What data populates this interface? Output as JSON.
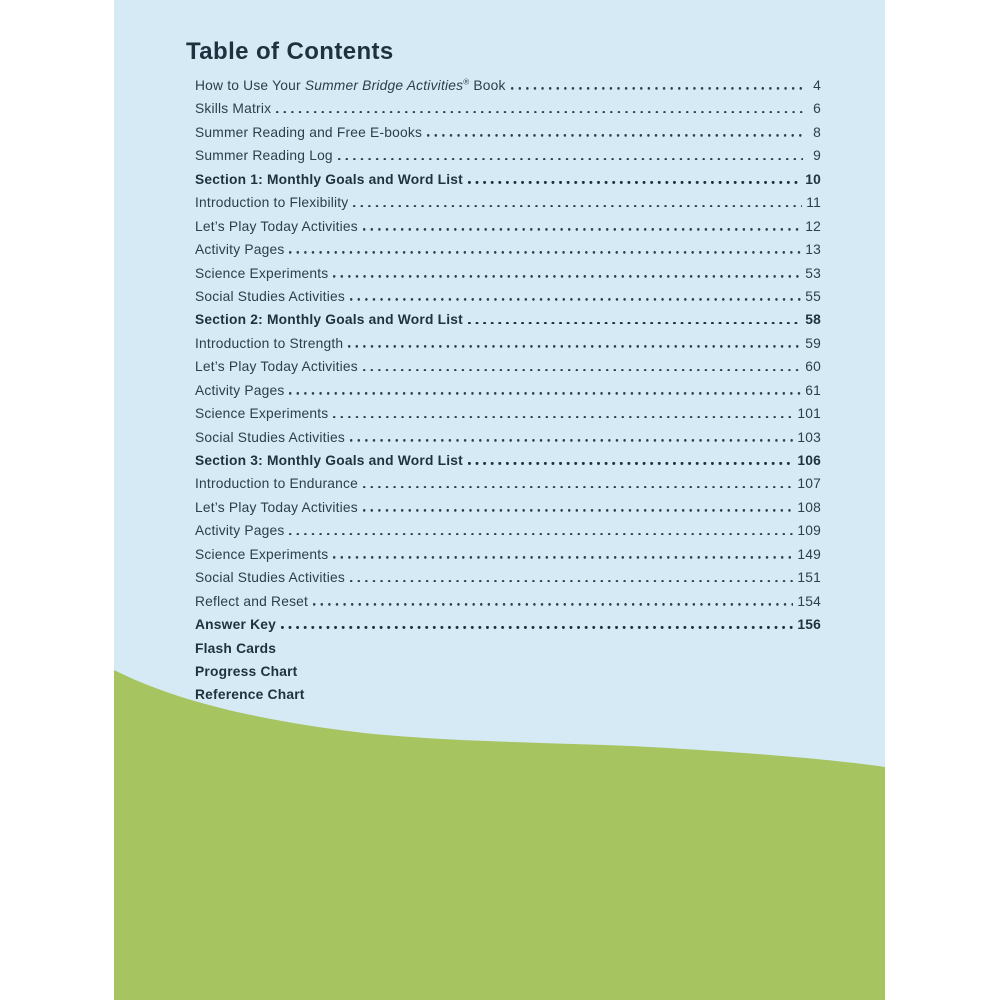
{
  "page": {
    "title": "Table of Contents"
  },
  "colors": {
    "page_background": "#d6eaf5",
    "wave_green": "#a6c45f",
    "text": "#2b3e4a",
    "bold_text": "#1d323e"
  },
  "toc": {
    "entries": [
      {
        "pre": "How to Use Your ",
        "italic": "Summer Bridge Activities",
        "sup": "®",
        "post": " Book",
        "page": "4",
        "bold": false
      },
      {
        "label": "Skills Matrix",
        "page": "6",
        "bold": false
      },
      {
        "label": "Summer Reading and Free E-books",
        "page": "8",
        "bold": false
      },
      {
        "label": "Summer Reading Log",
        "page": "9",
        "bold": false
      },
      {
        "label": "Section 1: Monthly Goals and Word List",
        "page": "10",
        "bold": true
      },
      {
        "label": "Introduction to Flexibility",
        "page": "11",
        "bold": false
      },
      {
        "label": "Let’s Play Today Activities",
        "page": "12",
        "bold": false
      },
      {
        "label": "Activity Pages",
        "page": "13",
        "bold": false
      },
      {
        "label": "Science Experiments",
        "page": "53",
        "bold": false
      },
      {
        "label": "Social Studies Activities",
        "page": "55",
        "bold": false
      },
      {
        "label": "Section 2: Monthly Goals and Word List",
        "page": "58",
        "bold": true
      },
      {
        "label": "Introduction to Strength",
        "page": "59",
        "bold": false
      },
      {
        "label": "Let’s Play Today Activities",
        "page": "60",
        "bold": false
      },
      {
        "label": "Activity Pages",
        "page": "61",
        "bold": false
      },
      {
        "label": "Science Experiments",
        "page": "101",
        "bold": false
      },
      {
        "label": "Social Studies Activities",
        "page": "103",
        "bold": false
      },
      {
        "label": "Section 3: Monthly Goals and Word List",
        "page": "106",
        "bold": true
      },
      {
        "label": "Introduction to Endurance",
        "page": "107",
        "bold": false
      },
      {
        "label": "Let’s Play Today Activities",
        "page": "108",
        "bold": false
      },
      {
        "label": "Activity Pages",
        "page": "109",
        "bold": false
      },
      {
        "label": "Science Experiments",
        "page": "149",
        "bold": false
      },
      {
        "label": "Social Studies Activities",
        "page": "151",
        "bold": false
      },
      {
        "label": "Reflect and Reset",
        "page": "154",
        "bold": false
      },
      {
        "label": "Answer Key",
        "page": "156",
        "bold": true
      },
      {
        "label": "Flash Cards",
        "page": "",
        "bold": true
      },
      {
        "label": "Progress Chart",
        "page": "",
        "bold": true
      },
      {
        "label": "Reference Chart",
        "page": "",
        "bold": true
      }
    ]
  }
}
